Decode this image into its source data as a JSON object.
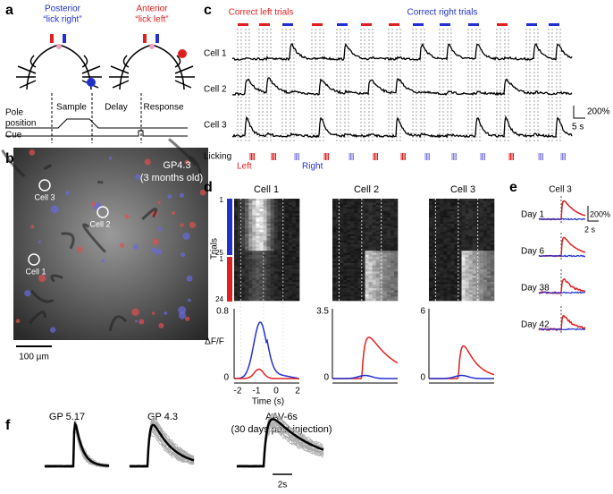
{
  "panel_a": {
    "label": "a",
    "posterior": "Posterior",
    "lick_right": "“lick right”",
    "anterior": "Anterior",
    "lick_left": "“lick left”",
    "epochs": [
      "Sample",
      "Delay",
      "Response"
    ],
    "pole": [
      "Pole",
      "position"
    ],
    "cue": "Cue"
  },
  "panel_b": {
    "label": "b",
    "title": "GP4.3",
    "subtitle": "(3 months old)",
    "cells": [
      "Cell 3",
      "Cell 2",
      "Cell 1"
    ],
    "scale": "100 µm"
  },
  "panel_c": {
    "label": "c",
    "left_trials": "Correct left trials",
    "right_trials": "Correct right trials",
    "cells": [
      "Cell 1",
      "Cell 2",
      "Cell 3"
    ],
    "scale_y": "200%",
    "scale_x": "5 s",
    "licking": "Licking",
    "left": "Left",
    "right": "Right"
  },
  "panel_d": {
    "label": "d",
    "cells": [
      "Cell 1",
      "Cell 2",
      "Cell 3"
    ],
    "trials": "Trials",
    "trial_ticks": [
      "1",
      "25",
      "1",
      "24"
    ],
    "ylabel": "ΔF/F",
    "ymax": [
      "0.8",
      "3.5",
      "6"
    ],
    "yzero": "0",
    "xticks": [
      "-2",
      "-1",
      "0",
      "2"
    ],
    "xlabel": "Time (s)"
  },
  "panel_e": {
    "label": "e",
    "title": "Cell 3",
    "days": [
      "Day 1",
      "Day 6",
      "Day 38",
      "Day 42"
    ],
    "scale_y": "200%",
    "scale_x": "2 s"
  },
  "panel_f": {
    "label": "f",
    "titles": [
      "GP 5.17",
      "GP 4.3",
      "AAV-6s"
    ],
    "subtitle": "(30 days post injection)",
    "scale": "2s"
  }
}
